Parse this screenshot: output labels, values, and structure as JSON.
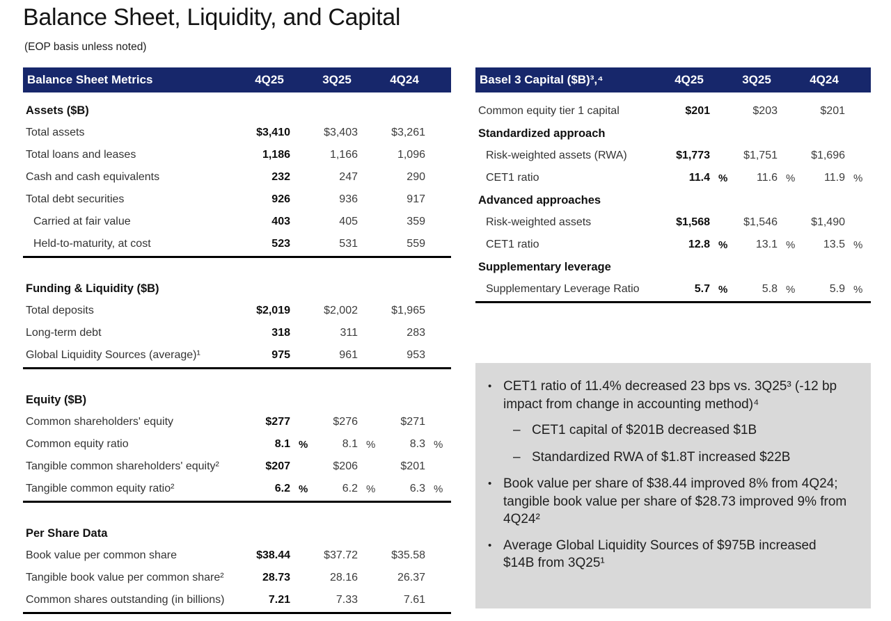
{
  "page": {
    "title": "Balance Sheet, Liquidity, and Capital",
    "subtitle": "(EOP basis unless noted)"
  },
  "colors": {
    "header_navy": "#17276b",
    "callout_bg": "#d9d9d9",
    "rule_black": "#000000"
  },
  "columns": [
    "4Q25",
    "3Q25",
    "4Q24"
  ],
  "glyphs": {
    "bullet": "•",
    "dash": "–"
  },
  "left_table": {
    "header": "Balance Sheet Metrics",
    "sections": [
      {
        "title": "Assets ($B)",
        "rows": [
          {
            "label": "Total assets",
            "values": [
              "$3,410",
              "$3,403",
              "$3,261"
            ]
          },
          {
            "label": "Total loans and leases",
            "values": [
              "1,186",
              "1,166",
              "1,096"
            ]
          },
          {
            "label": "Cash and cash equivalents",
            "values": [
              "232",
              "247",
              "290"
            ]
          },
          {
            "label": "Total debt securities",
            "values": [
              "926",
              "936",
              "917"
            ]
          },
          {
            "label": "Carried at fair value",
            "values": [
              "403",
              "405",
              "359"
            ]
          },
          {
            "label": "Held-to-maturity, at cost",
            "values": [
              "523",
              "531",
              "559"
            ]
          }
        ]
      },
      {
        "title": "Funding & Liquidity ($B)",
        "rows": [
          {
            "label": "Total deposits",
            "values": [
              "$2,019",
              "$2,002",
              "$1,965"
            ]
          },
          {
            "label": "Long-term debt",
            "values": [
              "318",
              "311",
              "283"
            ]
          },
          {
            "label": "Global Liquidity Sources (average)¹",
            "values": [
              "975",
              "961",
              "953"
            ]
          }
        ]
      },
      {
        "title": "Equity ($B)",
        "rows": [
          {
            "label": "Common shareholders' equity",
            "values": [
              "$277",
              "$276",
              "$271"
            ]
          },
          {
            "label": "Common equity ratio",
            "values": [
              "8.1",
              "8.1",
              "8.3"
            ],
            "unit": "%"
          },
          {
            "label": "Tangible common shareholders' equity²",
            "values": [
              "$207",
              "$206",
              "$201"
            ]
          },
          {
            "label": "Tangible common equity ratio²",
            "values": [
              "6.2",
              "6.2",
              "6.3"
            ],
            "unit": "%"
          }
        ]
      },
      {
        "title": "Per Share Data",
        "rows": [
          {
            "label": "Book value per common share",
            "values": [
              "$38.44",
              "$37.72",
              "$35.58"
            ]
          },
          {
            "label": "Tangible book value per common share²",
            "values": [
              "28.73",
              "28.16",
              "26.37"
            ]
          },
          {
            "label": "Common shares outstanding (in billions)",
            "values": [
              "7.21",
              "7.33",
              "7.61"
            ]
          }
        ]
      }
    ]
  },
  "right_table": {
    "header": "Basel 3 Capital ($B)³,⁴",
    "rows": [
      {
        "label": "Common equity tier 1 capital",
        "values": [
          "$201",
          "$203",
          "$201"
        ]
      },
      {
        "label": "Standardized approach",
        "subheader": true
      },
      {
        "label": "Risk-weighted assets (RWA)",
        "indent": true,
        "values": [
          "$1,773",
          "$1,751",
          "$1,696"
        ]
      },
      {
        "label": "CET1 ratio",
        "indent": true,
        "values": [
          "11.4",
          "11.6",
          "11.9"
        ],
        "unit": "%"
      },
      {
        "label": "Advanced approaches",
        "subheader": true
      },
      {
        "label": "Risk-weighted assets",
        "indent": true,
        "values": [
          "$1,568",
          "$1,546",
          "$1,490"
        ]
      },
      {
        "label": "CET1 ratio",
        "indent": true,
        "values": [
          "12.8",
          "13.1",
          "13.5"
        ],
        "unit": "%"
      },
      {
        "label": "Supplementary leverage",
        "subheader": true
      },
      {
        "label": "Supplementary Leverage Ratio",
        "indent": true,
        "values": [
          "5.7",
          "5.8",
          "5.9"
        ],
        "unit": "%"
      }
    ]
  },
  "callout": {
    "bullets": [
      {
        "text": "CET1 ratio of 11.4% decreased 23 bps vs. 3Q25³ (-12 bp impact from change in accounting method)⁴",
        "subs": [
          "CET1 capital of $201B decreased $1B",
          "Standardized RWA of $1.8T increased $22B"
        ]
      },
      {
        "text": "Book value per share of $38.44 improved 8% from 4Q24; tangible book value per share of $28.73 improved 9% from 4Q24²"
      },
      {
        "text": "Average Global Liquidity Sources of $975B increased $14B from 3Q25¹"
      }
    ]
  }
}
